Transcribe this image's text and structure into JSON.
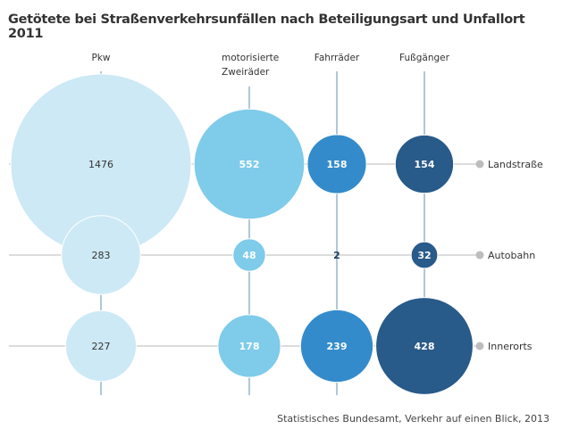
{
  "chart_data": {
    "type": "bubble-matrix",
    "title": "Getötete bei Straßenverkehrsunfällen nach Beteiligungsart und Unfallort 2011",
    "source": "Statistisches Bundesamt, Verkehr auf einen Blick, 2013",
    "columns": [
      {
        "label": [
          "Pkw"
        ],
        "color": "#cde9f5",
        "text_color": "#333333"
      },
      {
        "label": [
          "motorisierte",
          "Zweiräder"
        ],
        "color": "#7ecbea",
        "text_color": "#ffffff"
      },
      {
        "label": [
          "Fahrräder"
        ],
        "color": "#338bcb",
        "text_color": "#ffffff"
      },
      {
        "label": [
          "Fußgänger"
        ],
        "color": "#285a8a",
        "text_color": "#ffffff"
      }
    ],
    "rows": [
      "Landstraße",
      "Autobahn",
      "Innerorts"
    ],
    "values": [
      [
        1476,
        552,
        158,
        154
      ],
      [
        283,
        48,
        2,
        32
      ],
      [
        227,
        178,
        239,
        428
      ]
    ]
  }
}
